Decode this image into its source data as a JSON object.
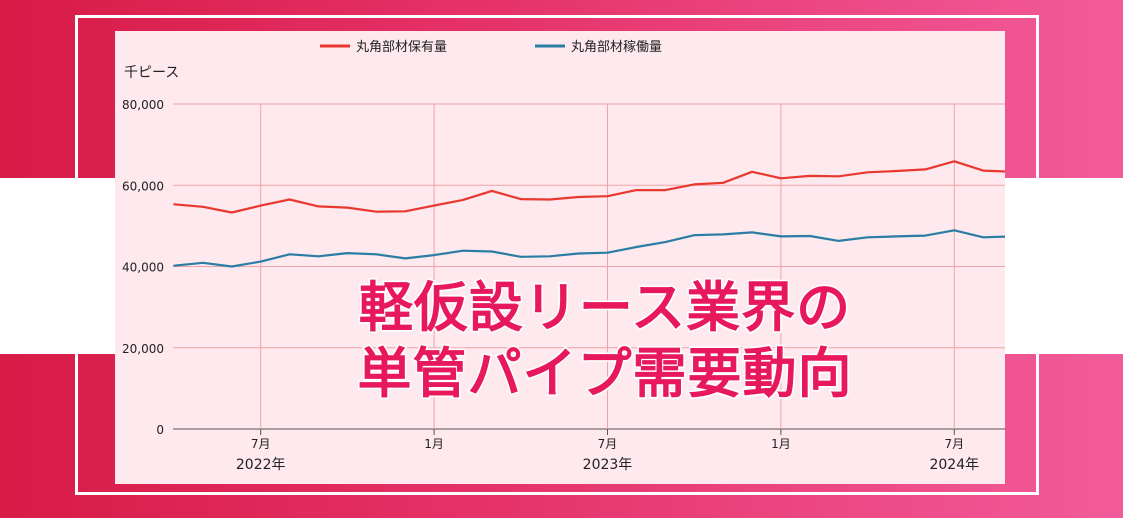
{
  "colors": {
    "holding": "#e8382f",
    "operating": "#2a7da3",
    "grid": "#f0a4a8",
    "headline": "#e8185c"
  },
  "headline": {
    "line1": "軽仮設リース業界の",
    "line2": "単管パイプ需要動向"
  },
  "chart_data": {
    "type": "line",
    "ylabel": "千ピース",
    "ylim": [
      0,
      80000
    ],
    "yticks": [
      0,
      20000,
      40000,
      60000,
      80000
    ],
    "ytick_labels": [
      "0",
      "20,000",
      "40,000",
      "60,000",
      "80,000"
    ],
    "x": [
      "2022-04",
      "2022-05",
      "2022-06",
      "2022-07",
      "2022-08",
      "2022-09",
      "2022-10",
      "2022-11",
      "2022-12",
      "2023-01",
      "2023-02",
      "2023-03",
      "2023-04",
      "2023-05",
      "2023-06",
      "2023-07",
      "2023-08",
      "2023-09",
      "2023-10",
      "2023-11",
      "2023-12",
      "2024-01",
      "2024-02",
      "2024-03",
      "2024-04",
      "2024-05",
      "2024-06",
      "2024-07",
      "2024-08",
      "2024-09"
    ],
    "xticks": [
      {
        "label": "7月",
        "year": "2022年",
        "index": 3
      },
      {
        "label": "1月",
        "year": "",
        "index": 9
      },
      {
        "label": "7月",
        "year": "2023年",
        "index": 15
      },
      {
        "label": "1月",
        "year": "",
        "index": 21
      },
      {
        "label": "7月",
        "year": "2024年",
        "index": 27
      }
    ],
    "series": [
      {
        "name": "丸角部材保有量",
        "color": "#e8382f",
        "values": [
          55300,
          54700,
          53300,
          55000,
          56500,
          54800,
          54500,
          53500,
          53600,
          55000,
          56400,
          58600,
          56600,
          56500,
          57100,
          57300,
          58800,
          58800,
          60200,
          60600,
          63300,
          61700,
          62300,
          62200,
          63200,
          63500,
          63900,
          65900,
          63600,
          63300
        ]
      },
      {
        "name": "丸角部材稼働量",
        "color": "#2a7da3",
        "values": [
          40200,
          40900,
          40000,
          41200,
          43000,
          42500,
          43300,
          43000,
          42000,
          42800,
          43900,
          43700,
          42400,
          42500,
          43200,
          43400,
          44800,
          46000,
          47700,
          47900,
          48400,
          47400,
          47500,
          46300,
          47200,
          47400,
          47600,
          48900,
          47200,
          47400
        ]
      }
    ]
  }
}
